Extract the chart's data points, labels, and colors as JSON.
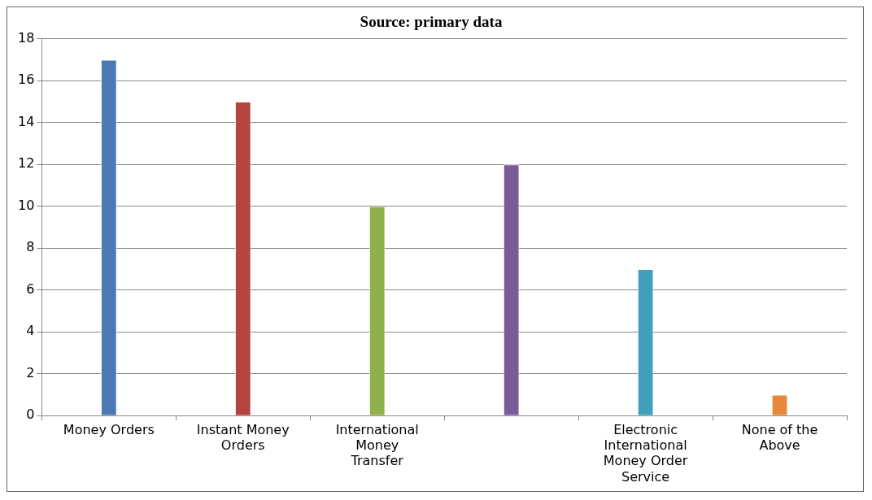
{
  "chart_data": {
    "type": "bar",
    "title": "Source: primary data",
    "categories": [
      "Money Orders",
      "Instant Money Orders",
      "International Money Transfer",
      null,
      "Electronic International Money Order Service",
      "None of the Above"
    ],
    "values": [
      17,
      15,
      10,
      12,
      7,
      1
    ],
    "colors": [
      "#4a7ab5",
      "#b5433f",
      "#8fb04a",
      "#7a5c9a",
      "#3fa0bb",
      "#e6893a"
    ],
    "ylim": [
      0,
      18
    ],
    "yticks": [
      0,
      2,
      4,
      6,
      8,
      10,
      12,
      14,
      16,
      18
    ],
    "grid": "y",
    "legend": false
  }
}
